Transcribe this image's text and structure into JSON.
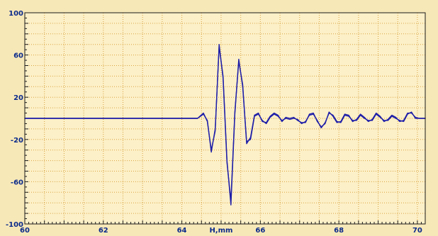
{
  "chart_data": {
    "type": "line",
    "xlabel": "H,mm",
    "ylabel": "",
    "xlim": [
      60,
      70.2
    ],
    "ylim": [
      -100,
      100
    ],
    "grid": true,
    "x_ticks": [
      60,
      62,
      64,
      66,
      68,
      70
    ],
    "x_tick_labels": [
      "60",
      "62",
      "64",
      "66",
      "68",
      "70"
    ],
    "y_ticks": [
      100,
      60,
      20,
      -20,
      -60,
      -100
    ],
    "y_tick_labels": [
      "100",
      "60",
      "20",
      "-20",
      "-60",
      "-100"
    ],
    "series": [
      {
        "x": [
          60,
          64.4,
          64.55,
          64.65,
          64.75,
          64.85,
          64.95,
          65.05,
          65.15,
          65.25,
          65.35,
          65.45,
          65.55,
          65.65,
          65.75,
          65.85,
          65.95,
          66.05,
          66.15,
          66.25,
          66.35,
          66.45,
          66.55,
          66.65,
          66.75,
          66.85,
          66.95,
          67.05,
          67.15,
          67.25,
          67.35,
          67.45,
          67.55,
          67.65,
          67.75,
          67.85,
          67.95,
          68.05,
          68.15,
          68.25,
          68.35,
          68.45,
          68.55,
          68.65,
          68.75,
          68.85,
          68.95,
          69.05,
          69.15,
          69.25,
          69.35,
          69.45,
          69.55,
          69.65,
          69.75,
          69.85,
          69.95,
          70.05,
          70.2
        ],
        "y": [
          0,
          0,
          4,
          -2,
          -32,
          -10,
          68,
          40,
          -40,
          -82,
          4,
          56,
          30,
          -22,
          -20,
          2,
          4,
          -2,
          -5,
          1,
          4,
          2,
          -2,
          0,
          -1,
          0,
          -1,
          -5,
          -3,
          3,
          4,
          -2,
          -9,
          -4,
          5,
          3,
          -3,
          -4,
          3,
          2,
          -2,
          -2,
          3,
          0,
          -2,
          -2,
          4,
          1,
          -2,
          -2,
          2,
          0,
          -2,
          -3,
          4,
          6,
          0,
          0,
          0
        ]
      },
      {
        "x": [
          60,
          64.4,
          64.55,
          64.65,
          64.75,
          64.85,
          64.95,
          65.05,
          65.15,
          65.25,
          65.35,
          65.45,
          65.55,
          65.65,
          65.75,
          65.85,
          65.95,
          66.05,
          66.15,
          66.25,
          66.35,
          66.45,
          66.55,
          66.65,
          66.75,
          66.85,
          66.95,
          67.05,
          67.15,
          67.25,
          67.35,
          67.45,
          67.55,
          67.65,
          67.75,
          67.85,
          67.95,
          68.05,
          68.15,
          68.25,
          68.35,
          68.45,
          68.55,
          68.65,
          68.75,
          68.85,
          68.95,
          69.05,
          69.15,
          69.25,
          69.35,
          69.45,
          69.55,
          69.65,
          69.75,
          69.85,
          69.95,
          70.05,
          70.2
        ],
        "y": [
          0,
          0,
          5,
          -3,
          -30,
          -12,
          70,
          38,
          -42,
          -78,
          6,
          54,
          32,
          -24,
          -18,
          3,
          5,
          -3,
          -4,
          2,
          5,
          3,
          -3,
          1,
          0,
          1,
          -2,
          -4,
          -4,
          4,
          5,
          -3,
          -8,
          -5,
          6,
          2,
          -4,
          -3,
          4,
          3,
          -3,
          -1,
          4,
          1,
          -3,
          -1,
          5,
          2,
          -3,
          -1,
          3,
          1,
          -3,
          -2,
          5,
          5,
          1,
          0,
          0
        ]
      }
    ],
    "colors": {
      "background": "#f7e8b8",
      "plot_background": "#fcf0c8",
      "grid": "#d9a441",
      "axis": "#1a1a1a",
      "line": "#1f1fa8",
      "tick_text": "#0a2a8a"
    }
  }
}
